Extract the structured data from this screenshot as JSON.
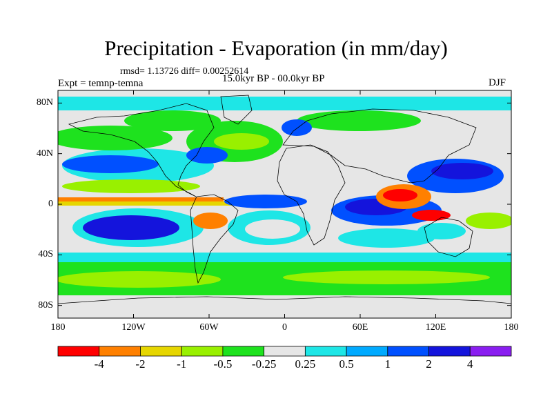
{
  "title": "Precipitation - Evaporation (in mm/day)",
  "stats": "rmsd= 1.13726 diff= 0.00252614",
  "experiment": "Expt = temnp-temna",
  "period": "15.0kyr BP - 00.0kyr BP",
  "season": "DJF",
  "map": {
    "projection": "cylindrical-equidistant",
    "lon_range": [
      -180,
      180
    ],
    "lat_range": [
      -90,
      90
    ],
    "background_color": "#e6e6e6",
    "y_tick_labels": [
      "80N",
      "40N",
      "0",
      "40S",
      "80S"
    ],
    "y_tick_values": [
      80,
      40,
      0,
      -40,
      -80
    ],
    "x_tick_labels": [
      "180",
      "120W",
      "60W",
      "0",
      "60E",
      "120E",
      "180"
    ],
    "x_tick_values": [
      -180,
      -120,
      -60,
      0,
      60,
      120,
      180
    ]
  },
  "colorbar": {
    "colors": [
      "#ff0000",
      "#ff8000",
      "#e6d600",
      "#99f000",
      "#1ee21e",
      "#e6e6e6",
      "#1ee6e6",
      "#00aaff",
      "#0050ff",
      "#1414dc",
      "#8a1ef0"
    ],
    "labels": [
      "-4",
      "-2",
      "-1",
      "-0.5",
      "-0.25",
      "0.25",
      "0.5",
      "1",
      "2",
      "4"
    ]
  }
}
